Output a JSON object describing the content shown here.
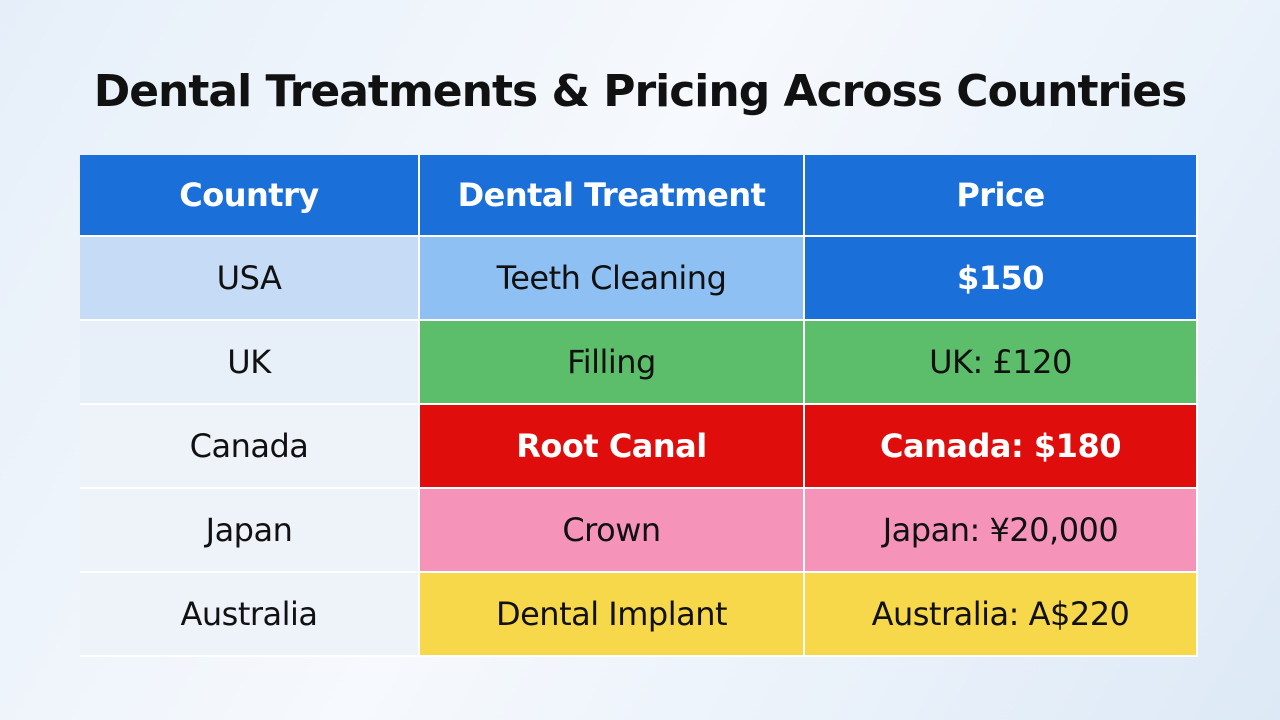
{
  "header": {
    "title": "Dental Treatments & Pricing Across Countries"
  },
  "table": {
    "columns": [
      "Country",
      "Dental Treatment",
      "Price"
    ],
    "rows": [
      [
        "USA",
        "Teeth Cleaning",
        "$150"
      ],
      [
        "UK",
        "Filling",
        "UK: £120"
      ],
      [
        "Canada",
        "Root Canal",
        "Canada:  $180"
      ],
      [
        "Japan",
        "Crown",
        "Japan: ¥20,000"
      ],
      [
        "Australia",
        "Dental Implant",
        "Australia: A$220"
      ]
    ]
  }
}
